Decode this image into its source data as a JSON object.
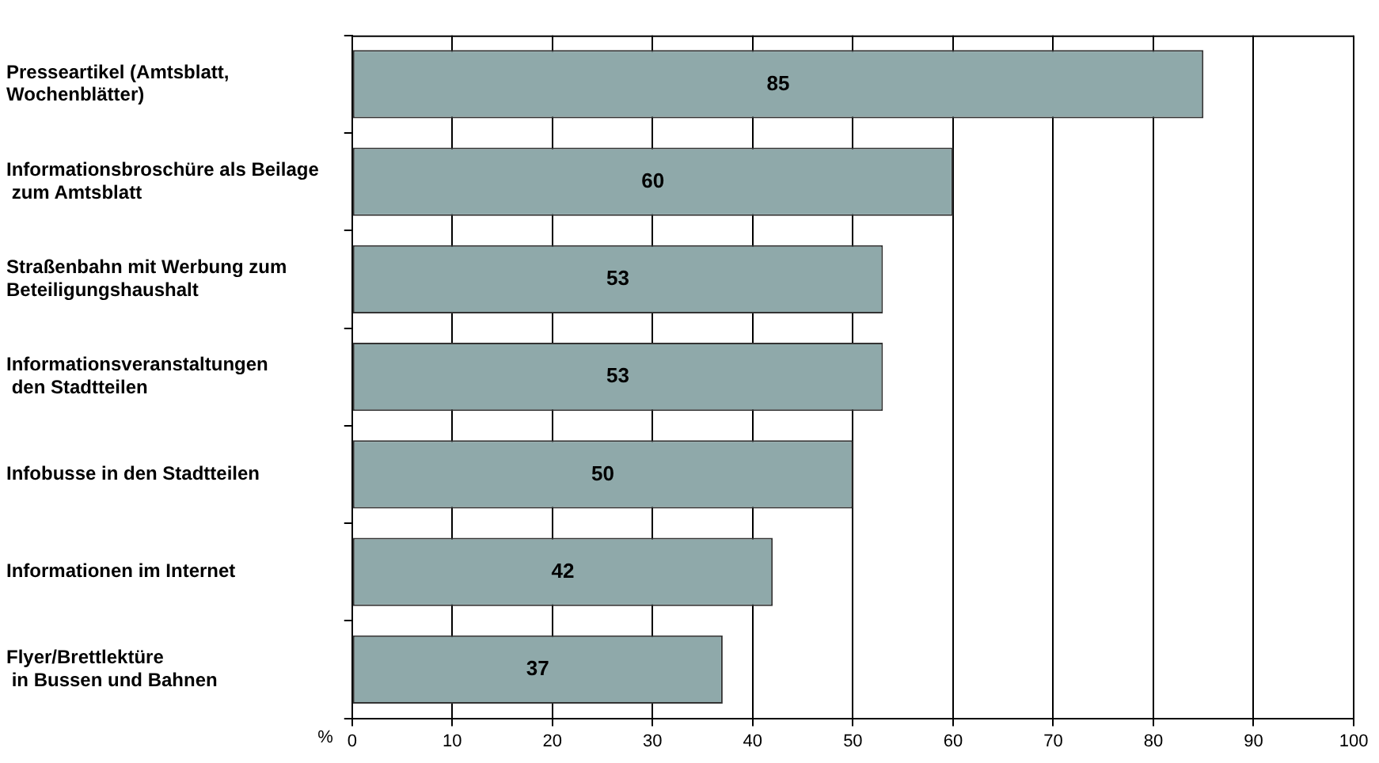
{
  "chart_data": {
    "type": "bar",
    "orientation": "horizontal",
    "xlabel": "%",
    "categories": [
      "Presseartikel (Amtsblatt,\nWochenblätter)",
      "Informationsbroschüre als Beilage\n zum Amtsblatt",
      "Straßenbahn mit Werbung zum\nBeteiligungshaushalt",
      "Informationsveranstaltungen\n den Stadtteilen",
      "Infobusse in den Stadtteilen",
      "Informationen im Internet",
      "Flyer/Brettlektüre\n in Bussen und Bahnen"
    ],
    "values": [
      85,
      60,
      53,
      53,
      50,
      42,
      37
    ],
    "color": "#8fa9aa",
    "xlim": [
      0,
      100
    ],
    "xticks": [
      0,
      10,
      20,
      30,
      40,
      50,
      60,
      70,
      80,
      90,
      100
    ],
    "grid": "x",
    "data_labels": true,
    "legend": false
  }
}
